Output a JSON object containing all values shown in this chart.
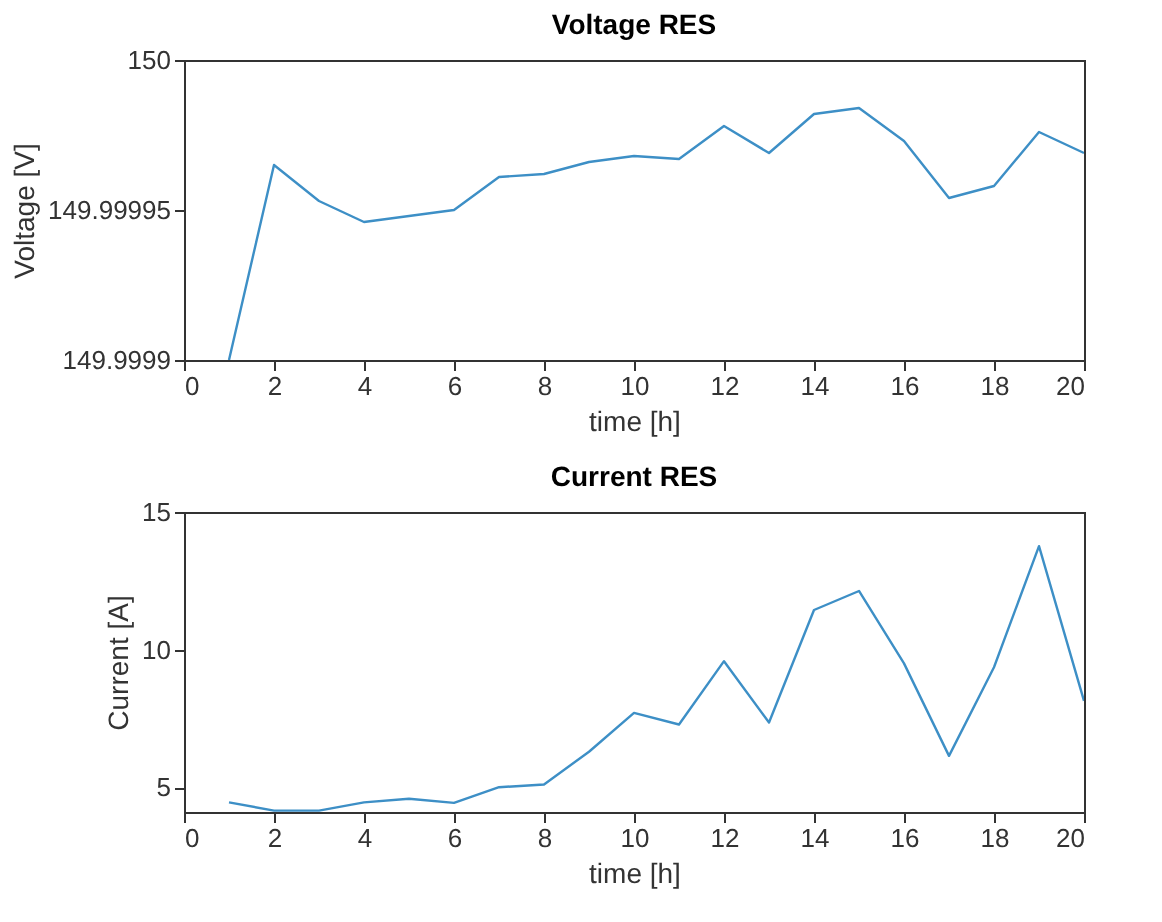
{
  "chart_data": [
    {
      "type": "line",
      "title": "Voltage RES",
      "xlabel": "time [h]",
      "ylabel": "Voltage [V]",
      "x": [
        1,
        2,
        3,
        4,
        5,
        6,
        7,
        8,
        9,
        10,
        11,
        12,
        13,
        14,
        15,
        16,
        17,
        18,
        19,
        20
      ],
      "xlim": [
        0,
        20
      ],
      "xticks": [
        0,
        2,
        4,
        6,
        8,
        10,
        12,
        14,
        16,
        18,
        20
      ],
      "ylim": [
        149.9999,
        150
      ],
      "yticks": [
        149.9999,
        149.99995,
        150
      ],
      "grid": false,
      "marker": "none",
      "line_style": "solid",
      "series": [
        {
          "color": "#3d8fc6",
          "values": [
            149.9999,
            149.999965,
            149.999953,
            149.999946,
            149.999948,
            149.99995,
            149.999961,
            149.999962,
            149.999966,
            149.999968,
            149.999967,
            149.999978,
            149.999969,
            149.999982,
            149.999984,
            149.999973,
            149.999954,
            149.999958,
            149.999976,
            149.999969
          ]
        }
      ]
    },
    {
      "type": "line",
      "title": "Current RES",
      "xlabel": "time [h]",
      "ylabel": "Current [A]",
      "x": [
        1,
        2,
        3,
        4,
        5,
        6,
        7,
        8,
        9,
        10,
        11,
        12,
        13,
        14,
        15,
        16,
        17,
        18,
        19,
        20
      ],
      "xlim": [
        0,
        20
      ],
      "xticks": [
        0,
        2,
        4,
        6,
        8,
        10,
        12,
        14,
        16,
        18,
        20
      ],
      "ylim": [
        4.1,
        15
      ],
      "yticks": [
        5,
        10,
        15
      ],
      "grid": false,
      "marker": "none",
      "line_style": "solid",
      "series": [
        {
          "color": "#3d8fc6",
          "values": [
            4.45,
            4.15,
            4.15,
            4.45,
            4.58,
            4.43,
            5.0,
            5.1,
            6.29,
            7.7,
            7.28,
            9.58,
            7.35,
            11.44,
            12.13,
            9.5,
            6.14,
            9.36,
            13.76,
            8.14
          ]
        }
      ]
    }
  ]
}
